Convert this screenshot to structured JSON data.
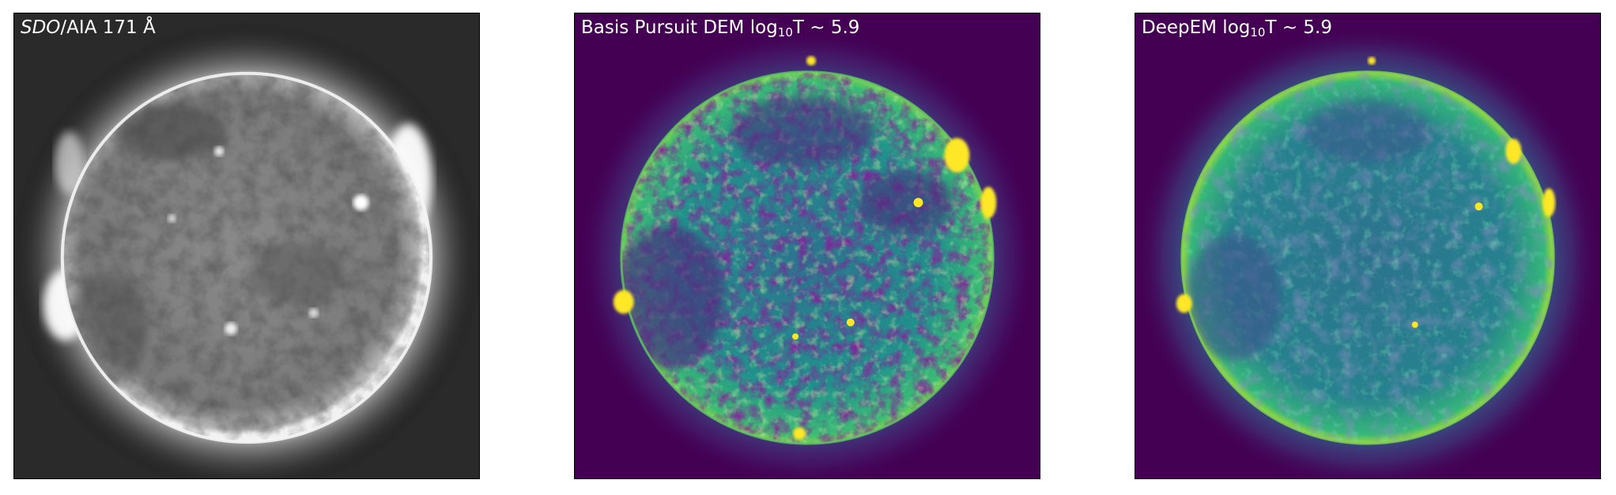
{
  "panels": [
    {
      "title_italic": "SDO",
      "title_rest": "/AIA 171 Å",
      "colormap": "gray"
    },
    {
      "title_pre": "Basis Pursuit DEM log",
      "title_sub": "10",
      "title_post": "T ~ 5.9",
      "colormap": "viridis"
    },
    {
      "title_pre": "DeepEM log",
      "title_sub": "10",
      "title_post": "T ~ 5.9",
      "colormap": "viridis"
    }
  ],
  "colors": {
    "viridis_low": "#440154",
    "viridis_mid": "#21918c",
    "viridis_high": "#fde725",
    "frame": "#000000",
    "label_text": "#ffffff"
  }
}
